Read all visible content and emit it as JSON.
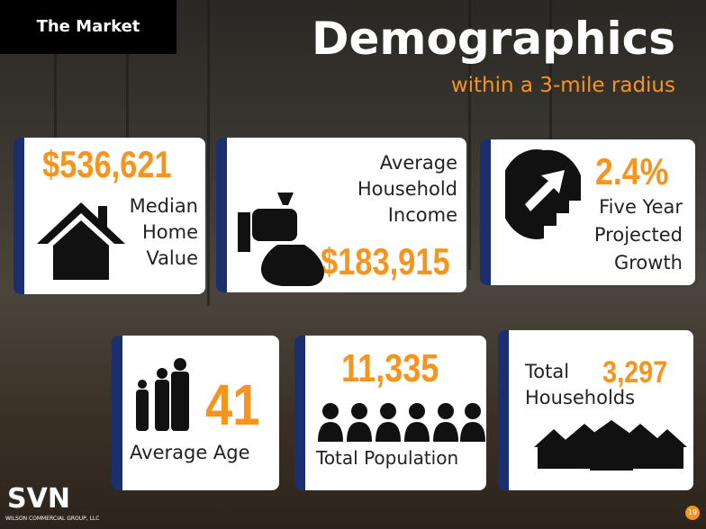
{
  "header": {
    "tag": "The Market",
    "title": "Demographics",
    "subtitle": "within a 3-mile radius"
  },
  "cards": [
    {
      "value": "$536,621",
      "label_lines": [
        "Median",
        "Home",
        "Value"
      ]
    },
    {
      "value": "$183,915",
      "label_lines": [
        "Average",
        "Household",
        "Income"
      ]
    },
    {
      "value": "2.4%",
      "label_lines": [
        "Five Year",
        "Projected",
        "Growth"
      ]
    },
    {
      "value": "41",
      "label_lines": [
        "Average Age"
      ]
    },
    {
      "value": "11,335",
      "label_lines": [
        "Total Population"
      ]
    },
    {
      "value": "3,297",
      "label_lines": [
        "Total",
        "Households"
      ]
    }
  ],
  "footer": {
    "logo": "SVN",
    "company": "WILSON COMMERCIAL GROUP, LLC",
    "page": "19"
  }
}
